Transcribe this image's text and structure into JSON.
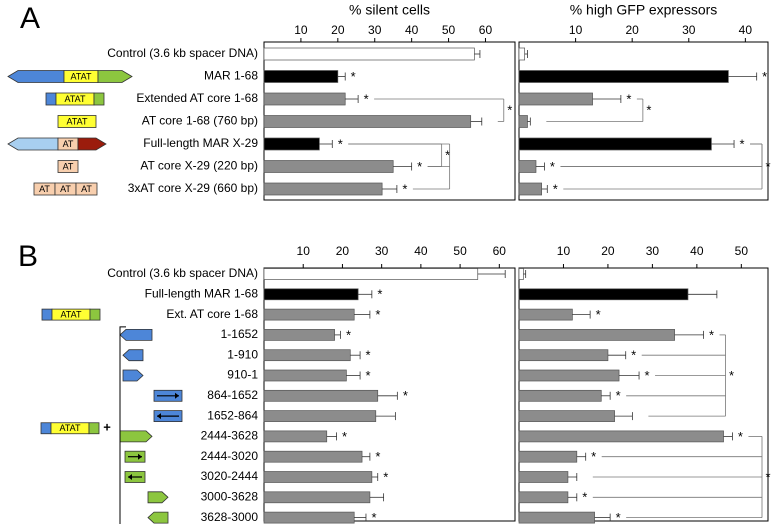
{
  "colors": {
    "white": "#ffffff",
    "black": "#000000",
    "grey": "#8c8c8c",
    "blue": "#4d86d8",
    "lightblue": "#a8cff0",
    "yellow": "#ffff33",
    "green": "#8cc63f",
    "darkred": "#9b1c0c",
    "peach": "#f8cfae"
  },
  "chart_data": [
    {
      "panel": "A",
      "type": "bar",
      "orientation": "horizontal",
      "categories": [
        "Control (3.6 kb spacer DNA)",
        "MAR 1-68",
        "Extended AT core 1-68",
        "AT core 1-68 (760 bp)",
        "Full-length MAR X-29",
        "AT  core X-29 (220 bp)",
        "3xAT core X-29 (660 bp)"
      ],
      "fills": [
        "white",
        "black",
        "grey",
        "grey",
        "black",
        "grey",
        "grey"
      ],
      "constructs": [
        {
          "kind": "none",
          "text": []
        },
        {
          "kind": "mar",
          "text": [
            "ATAT"
          ]
        },
        {
          "kind": "ext",
          "text": [
            "ATAT"
          ]
        },
        {
          "kind": "core",
          "text": [
            "ATAT"
          ]
        },
        {
          "kind": "x29",
          "text": [
            "AT"
          ]
        },
        {
          "kind": "x29core",
          "text": [
            "AT"
          ]
        },
        {
          "kind": "x29x3",
          "text": [
            "AT",
            "AT",
            "AT"
          ]
        }
      ],
      "series": [
        {
          "title": "% silent cells",
          "ticks": [
            10,
            20,
            30,
            40,
            50,
            60
          ],
          "xlim": [
            0,
            68
          ],
          "values": [
            57,
            20,
            22,
            56,
            15,
            35,
            32
          ],
          "errors": [
            1.5,
            2,
            3.5,
            3,
            3.5,
            5,
            4
          ],
          "stars": [
            "",
            "*",
            "*",
            "",
            "*",
            "*",
            "*"
          ],
          "brackets": [
            [
              2,
              3,
              "*"
            ],
            [
              4,
              5,
              "*"
            ],
            [
              4,
              6,
              ""
            ]
          ]
        },
        {
          "title": "% high GFP expressors",
          "ticks": [
            10,
            20,
            30,
            40
          ],
          "xlim": [
            0,
            44
          ],
          "values": [
            1,
            37,
            13,
            1.5,
            34,
            3,
            4
          ],
          "errors": [
            0.5,
            5,
            5,
            0.5,
            4,
            1.5,
            1
          ],
          "stars": [
            "",
            "*",
            "*",
            "",
            "*",
            "*",
            "*"
          ],
          "brackets": [
            [
              2,
              3,
              "*"
            ],
            [
              4,
              5,
              ""
            ],
            [
              4,
              6,
              "*"
            ]
          ]
        }
      ]
    },
    {
      "panel": "B",
      "type": "bar",
      "orientation": "horizontal",
      "categories": [
        "Control (3.6 kb spacer DNA)",
        "Full-length MAR 1-68",
        "Ext. AT core 1-68",
        "1-1652",
        "1-910",
        "910-1",
        "864-1652",
        "1652-864",
        "2444-3628",
        "2444-3020",
        "3020-2444",
        "3000-3628",
        "3628-3000"
      ],
      "fills": [
        "white",
        "black",
        "grey",
        "grey",
        "grey",
        "grey",
        "grey",
        "grey",
        "grey",
        "grey",
        "grey",
        "grey",
        "grey"
      ],
      "constructs": [
        {
          "kind": "none",
          "text": []
        },
        {
          "kind": "none",
          "text": []
        },
        {
          "kind": "ext",
          "text": [
            "ATAT"
          ]
        },
        {
          "kind": "arrow-blue-long",
          "text": []
        },
        {
          "kind": "arrow-blue-short-left",
          "text": []
        },
        {
          "kind": "arrow-blue-short-right",
          "text": []
        },
        {
          "kind": "box-blue-fwd",
          "text": []
        },
        {
          "kind": "box-blue-rev",
          "text": []
        },
        {
          "kind": "arrow-green-long",
          "text": []
        },
        {
          "kind": "box-green-fwd",
          "text": []
        },
        {
          "kind": "box-green-rev",
          "text": []
        },
        {
          "kind": "arrow-green-short-right",
          "text": []
        },
        {
          "kind": "arrow-green-short-left",
          "text": []
        }
      ],
      "plus_construct": {
        "text": [
          "ATAT"
        ],
        "sign": "+"
      },
      "series": [
        {
          "title": "",
          "ticks": [
            10,
            20,
            30,
            40,
            50,
            60
          ],
          "xlim": [
            0,
            64
          ],
          "values": [
            54.5,
            24,
            23,
            18,
            22,
            21,
            29,
            28.5,
            16,
            25,
            27.5,
            27,
            23
          ],
          "errors": [
            7,
            3.5,
            4,
            1.5,
            2.5,
            3.5,
            5,
            5,
            2.5,
            2,
            1.5,
            3.5,
            3
          ],
          "stars": [
            "",
            "*",
            "*",
            "*",
            "*",
            "*",
            "*",
            "",
            "*",
            "*",
            "*",
            "",
            "*"
          ],
          "brackets": []
        },
        {
          "title": "",
          "ticks": [
            10,
            20,
            30,
            40,
            50
          ],
          "xlim": [
            0,
            56
          ],
          "values": [
            1,
            38,
            12,
            35,
            20,
            22.5,
            18.5,
            21.5,
            46,
            13,
            11,
            11,
            17
          ],
          "errors": [
            0.5,
            6.5,
            4,
            6.5,
            4,
            4.5,
            2,
            4,
            2,
            2,
            2,
            2,
            3.5
          ],
          "stars": [
            "",
            "",
            "*",
            "*",
            "*",
            "*",
            "*",
            "",
            "*",
            "*",
            "",
            "*",
            "*"
          ],
          "brackets": [
            [
              3,
              7,
              "*"
            ],
            [
              8,
              12,
              "*"
            ]
          ]
        }
      ]
    }
  ],
  "panel_letters": [
    "A",
    "B"
  ]
}
